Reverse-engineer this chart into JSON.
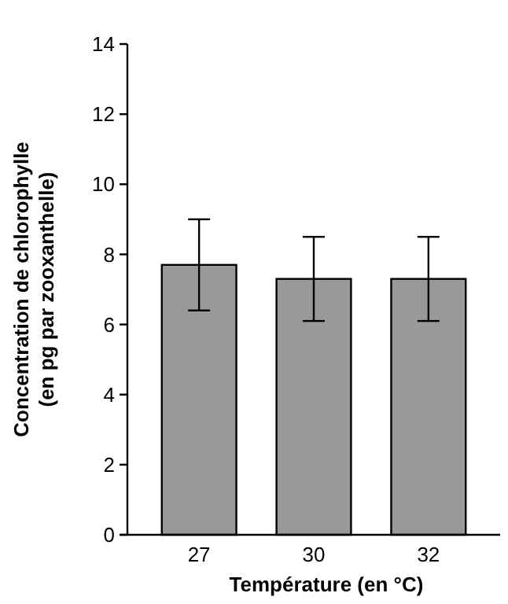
{
  "chart_data": {
    "type": "bar",
    "xlabel": "Température (en °C)",
    "ylabel": "Concentration de chlorophylle\n(en pg par zooxanthelle)",
    "categories": [
      "27",
      "30",
      "32"
    ],
    "values": [
      7.7,
      7.3,
      7.3
    ],
    "errors": [
      [
        6.4,
        9.0
      ],
      [
        6.1,
        8.5
      ],
      [
        6.1,
        8.5
      ]
    ],
    "color": "#999999",
    "ylim": [
      0,
      14
    ],
    "yticks": [
      0,
      2,
      4,
      6,
      8,
      10,
      12,
      14
    ]
  }
}
